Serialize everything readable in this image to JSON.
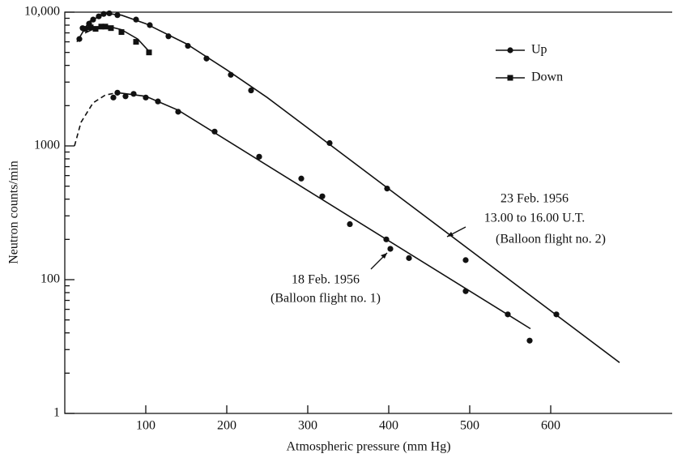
{
  "chart_data": {
    "type": "scatter",
    "xlabel": "Atmospheric pressure (mm Hg)",
    "ylabel": "Neutron counts/min",
    "xlim": [
      0,
      750
    ],
    "xticks": [
      100,
      200,
      300,
      400,
      500,
      600
    ],
    "ylim": [
      10,
      10000
    ],
    "ylog": true,
    "yticks": [
      {
        "value": 10,
        "label": "1"
      },
      100,
      1000,
      {
        "value": 10000,
        "label": "10,000"
      }
    ],
    "yminorticks": [
      20,
      30,
      40,
      50,
      60,
      70,
      80,
      90,
      200,
      300,
      400,
      500,
      600,
      700,
      800,
      900,
      2000,
      3000,
      4000,
      5000,
      6000,
      7000,
      8000,
      9000
    ],
    "color": "#111111",
    "legend": "upper right",
    "series": [
      {
        "name": "Up",
        "marker": "circle",
        "x": [
          18,
          22,
          30,
          35,
          42,
          48,
          55,
          65,
          88,
          105,
          128,
          152,
          175,
          205,
          230,
          327,
          398,
          495,
          607,
          60,
          65,
          75,
          85,
          100,
          115,
          140,
          185,
          240,
          292,
          318,
          352,
          397,
          402,
          425,
          495,
          547,
          574
        ],
        "values": [
          6300,
          7600,
          8200,
          8800,
          9300,
          9700,
          9800,
          9500,
          8800,
          8000,
          6600,
          5600,
          4500,
          3400,
          2600,
          1050,
          480,
          140,
          55,
          2300,
          2500,
          2350,
          2450,
          2300,
          2150,
          1800,
          1280,
          830,
          570,
          420,
          260,
          200,
          170,
          145,
          82,
          55,
          35
        ]
      },
      {
        "name": "Down",
        "marker": "square",
        "x": [
          25,
          32,
          38,
          45,
          50,
          57,
          70,
          88,
          104
        ],
        "values": [
          7500,
          7700,
          7500,
          7800,
          7800,
          7600,
          7100,
          6000,
          5000
        ]
      }
    ],
    "curves": [
      {
        "dashed": false,
        "x": [
          15,
          30,
          50,
          70,
          100,
          150,
          200,
          250,
          685
        ],
        "values": [
          6000,
          8500,
          9800,
          9500,
          8200,
          5800,
          3700,
          2300,
          24
        ]
      },
      {
        "dashed": false,
        "x": [
          25,
          40,
          55,
          70,
          90,
          104
        ],
        "values": [
          7000,
          7700,
          7800,
          7400,
          6300,
          5100
        ]
      },
      {
        "dashed": true,
        "x": [
          12,
          20,
          35,
          50,
          65
        ],
        "values": [
          1000,
          1500,
          2100,
          2400,
          2500
        ]
      },
      {
        "dashed": false,
        "x": [
          65,
          100,
          140,
          575
        ],
        "values": [
          2500,
          2350,
          1850,
          43
        ]
      }
    ],
    "annotations": [
      {
        "lines": [
          "23 Feb. 1956",
          "13.00 to 16.00 U.T.",
          "(Balloon flight no. 2)"
        ]
      },
      {
        "lines": [
          "18 Feb. 1956",
          "(Balloon flight no. 1)"
        ]
      }
    ]
  }
}
